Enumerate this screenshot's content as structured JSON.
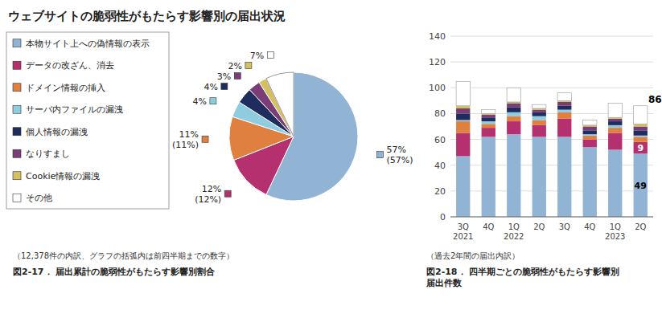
{
  "title": "ウェブサイトの脆弱性がもたらす影響別の届出状況",
  "chart_data": [
    {
      "type": "pie",
      "title": "図2-17． 届出累計の脆弱性がもたらす影響別割合",
      "subtitle": "（12,378件の内訳、グラフの括弧内は前四半期までの数字）",
      "categories": [
        "本物サイト上への偽情報の表示",
        "データの改ざん、消去",
        "ドメイン情報の挿入",
        "サーバ内ファイルの漏洩",
        "個人情報の漏洩",
        "なりすまし",
        "Cookie情報の漏洩",
        "その他"
      ],
      "values": [
        57,
        12,
        11,
        4,
        4,
        3,
        2,
        7
      ],
      "value_labels": [
        "57%\n(57%)",
        "12%\n(12%)",
        "11%\n(11%)",
        "4%",
        "4%",
        "3%",
        "2%",
        "7%"
      ],
      "colors": [
        "#92b4d4",
        "#b5306e",
        "#e08040",
        "#90cce0",
        "#1e2d5e",
        "#7a3d78",
        "#d4c060",
        "#ffffff"
      ],
      "data_labels": true,
      "legend": "left"
    },
    {
      "type": "bar",
      "title": "図2-18． 四半期ごとの脆弱性がもたらす影響別\n届出件数",
      "subtitle": "（過去2年間の届出内訳）",
      "stacked": true,
      "grid": true,
      "categories": [
        "3Q\n2021",
        "4Q",
        "1Q\n2022",
        "2Q",
        "3Q",
        "4Q",
        "1Q\n2023",
        "2Q"
      ],
      "series": [
        {
          "color": "#92b4d4",
          "values": [
            47,
            62,
            64,
            62,
            62,
            54,
            52,
            49
          ]
        },
        {
          "color": "#b5306e",
          "values": [
            18,
            7,
            10,
            9,
            14,
            6,
            13,
            9
          ]
        },
        {
          "color": "#e08040",
          "values": [
            9,
            3,
            4,
            4,
            5,
            3,
            4,
            4
          ]
        },
        {
          "color": "#90cce0",
          "values": [
            1,
            2,
            3,
            3,
            2,
            1,
            2,
            1
          ]
        },
        {
          "color": "#1e2d5e",
          "values": [
            5,
            3,
            4,
            3,
            3,
            3,
            3,
            4
          ]
        },
        {
          "color": "#7a3d78",
          "values": [
            4,
            2,
            3,
            2,
            3,
            3,
            2,
            3
          ]
        },
        {
          "color": "#d4c060",
          "values": [
            2,
            1,
            1,
            1,
            1,
            1,
            1,
            2
          ]
        },
        {
          "color": "#ffffff",
          "values": [
            19,
            3,
            11,
            3,
            6,
            4,
            11,
            14
          ]
        }
      ],
      "annotations": [
        "49",
        "9",
        "86"
      ],
      "ylim": [
        0,
        140
      ],
      "yticks": [
        0,
        20,
        40,
        60,
        80,
        100,
        120,
        140
      ]
    }
  ]
}
